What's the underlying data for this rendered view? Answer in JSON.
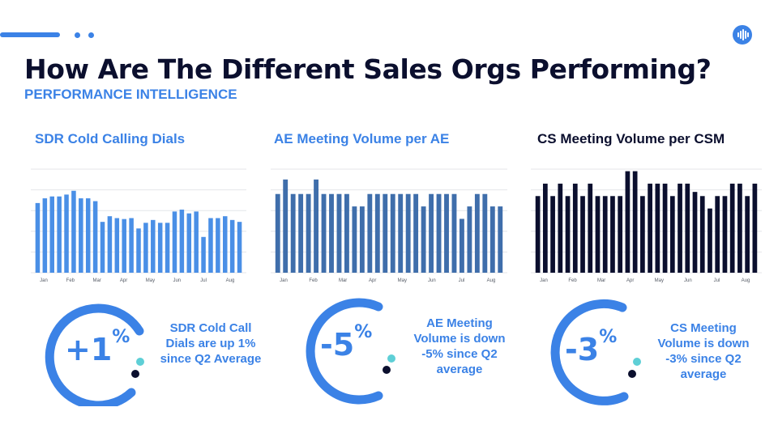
{
  "header": {
    "title": "How Are The Different Sales Orgs Performing?",
    "subtitle": "PERFORMANCE INTELLIGENCE"
  },
  "colors": {
    "accent": "#3b82e6",
    "light_accent": "#5ecfd6",
    "dark": "#0b0f2e",
    "sdr_bars": "#4a8fe6",
    "ae_bars": "#3f6eab",
    "cs_bars": "#0b0f2e"
  },
  "chart_data": [
    {
      "type": "bar",
      "title": "SDR Cold Calling Dials",
      "title_color": "#3b82e6",
      "bar_color": "#4a8fe6",
      "tick_labels": [
        "Jan",
        "Feb",
        "Mar",
        "Apr",
        "May",
        "Jun",
        "Jul",
        "Aug"
      ],
      "ylim": [
        0,
        110
      ],
      "grid": true,
      "values": [
        74,
        79,
        81,
        81,
        83,
        87,
        79,
        79,
        76,
        54,
        60,
        58,
        57,
        58,
        47,
        53,
        56,
        53,
        53,
        65,
        67,
        63,
        65,
        38,
        58,
        58,
        60,
        56,
        54
      ]
    },
    {
      "type": "bar",
      "title": "AE Meeting Volume per AE",
      "title_color": "#3b82e6",
      "bar_color": "#3f6eab",
      "tick_labels": [
        "Jan",
        "Feb",
        "Mar",
        "Apr",
        "May",
        "Jun",
        "Jul",
        "Aug"
      ],
      "ylim": [
        0,
        5
      ],
      "grid": true,
      "values": [
        3.8,
        4.5,
        3.8,
        3.8,
        3.8,
        4.5,
        3.8,
        3.8,
        3.8,
        3.8,
        3.2,
        3.2,
        3.8,
        3.8,
        3.8,
        3.8,
        3.8,
        3.8,
        3.8,
        3.2,
        3.8,
        3.8,
        3.8,
        3.8,
        2.6,
        3.2,
        3.8,
        3.8,
        3.2,
        3.2
      ]
    },
    {
      "type": "bar",
      "title": "CS Meeting Volume per CSM",
      "title_color": "#0b0f2e",
      "bar_color": "#0b0f2e",
      "tick_labels": [
        "Jan",
        "Feb",
        "Mar",
        "Apr",
        "May",
        "Jun",
        "Jul",
        "Aug"
      ],
      "ylim": [
        0,
        5
      ],
      "grid": true,
      "values": [
        3.7,
        4.3,
        3.7,
        4.3,
        3.7,
        4.3,
        3.7,
        4.3,
        3.7,
        3.7,
        3.7,
        3.7,
        4.9,
        4.9,
        3.7,
        4.3,
        4.3,
        4.3,
        3.7,
        4.3,
        4.3,
        3.9,
        3.7,
        3.1,
        3.7,
        3.7,
        4.3,
        4.3,
        3.7,
        4.3
      ]
    }
  ],
  "kpis": [
    {
      "value": "+1",
      "unit": "%",
      "caption": "SDR Cold Call Dials are up 1% since Q2 Average"
    },
    {
      "value": "-5",
      "unit": "%",
      "caption": "AE Meeting Volume is down -5% since Q2 average"
    },
    {
      "value": "-3",
      "unit": "%",
      "caption": "CS Meeting Volume is down -3% since Q2 average"
    }
  ]
}
